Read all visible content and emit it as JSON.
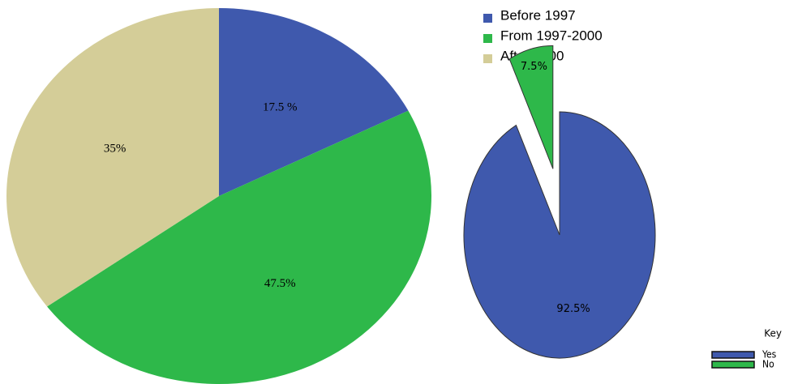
{
  "chart_data": [
    {
      "type": "pie",
      "categories": [
        "Before 1997",
        "From 1997-2000",
        "After 2000"
      ],
      "values": [
        17.5,
        47.5,
        35
      ],
      "value_labels": [
        "17.5 %",
        "47.5%",
        "35%"
      ],
      "colors": [
        "#3f59ad",
        "#2eb84a",
        "#d4cd98"
      ]
    },
    {
      "type": "pie",
      "legend_title": "Key",
      "categories": [
        "Yes",
        "No"
      ],
      "values": [
        92.5,
        7.5
      ],
      "value_labels": [
        "92.5%",
        "7.5%"
      ],
      "colors": [
        "#3f59ad",
        "#2eb84a"
      ]
    }
  ]
}
